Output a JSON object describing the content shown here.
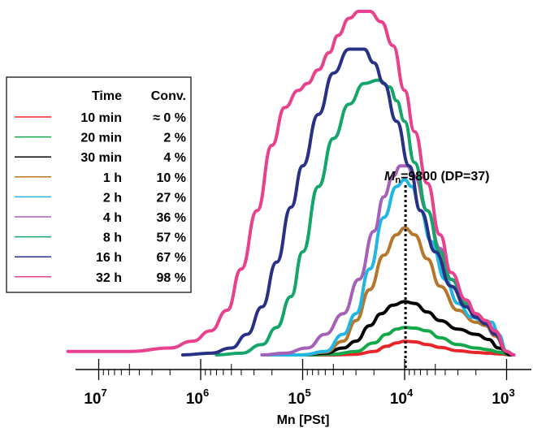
{
  "chart_data": {
    "type": "line",
    "xlabel": "Mn [PSt]",
    "x_scale": "log",
    "x_reversed": true,
    "xlim": [
      20000000,
      700
    ],
    "ylim": [
      0,
      1
    ],
    "grid": false,
    "legend_position": "top-left",
    "legend_headers": {
      "time": "Time",
      "conv": "Conv."
    },
    "tick_labels": [
      {
        "value": 10000000,
        "base": "10",
        "exp": "7"
      },
      {
        "value": 1000000,
        "base": "10",
        "exp": "6"
      },
      {
        "value": 100000,
        "base": "10",
        "exp": "5"
      },
      {
        "value": 10000,
        "base": "10",
        "exp": "4"
      },
      {
        "value": 1000,
        "base": "10",
        "exp": "3"
      }
    ],
    "annotation": {
      "x": 9800,
      "italic_part": "M",
      "subscript": "n",
      "rest": "=9800 (DP=37)"
    },
    "series": [
      {
        "name": "10 min",
        "conv": "≈ 0 %",
        "color": "#e8252a",
        "x": [
          250000,
          100000,
          50000,
          30000,
          20000,
          15000,
          12000,
          10000,
          8000,
          6000,
          4500,
          3000,
          2000,
          1500,
          1200,
          900
        ],
        "y": [
          0.0,
          0.0,
          0.0,
          0.002,
          0.01,
          0.025,
          0.035,
          0.04,
          0.038,
          0.03,
          0.022,
          0.012,
          0.007,
          0.005,
          0.003,
          0.0
        ]
      },
      {
        "name": "20 min",
        "conv": "2 %",
        "color": "#13a849",
        "x": [
          250000,
          100000,
          50000,
          30000,
          20000,
          15000,
          12000,
          10000,
          8000,
          6000,
          4500,
          3000,
          2000,
          1500,
          1200,
          900
        ],
        "y": [
          0.0,
          0.0,
          0.002,
          0.01,
          0.035,
          0.06,
          0.075,
          0.08,
          0.078,
          0.07,
          0.05,
          0.03,
          0.02,
          0.015,
          0.008,
          0.0
        ]
      },
      {
        "name": "30 min",
        "conv": "4 %",
        "color": "#000000",
        "x": [
          250000,
          100000,
          60000,
          40000,
          30000,
          22000,
          17000,
          13000,
          10000,
          8000,
          6000,
          4500,
          3000,
          2000,
          1500,
          1200,
          900
        ],
        "y": [
          0.0,
          0.0,
          0.005,
          0.02,
          0.04,
          0.085,
          0.12,
          0.145,
          0.155,
          0.15,
          0.125,
          0.1,
          0.075,
          0.06,
          0.045,
          0.02,
          0.0
        ]
      },
      {
        "name": "1 h",
        "conv": "10 %",
        "color": "#b5772c",
        "x": [
          250000,
          100000,
          60000,
          40000,
          30000,
          22000,
          16000,
          12000,
          10000,
          8000,
          6000,
          4500,
          3000,
          2000,
          1600,
          1300,
          1000,
          850
        ],
        "y": [
          0.0,
          0.0,
          0.008,
          0.04,
          0.1,
          0.19,
          0.29,
          0.35,
          0.37,
          0.35,
          0.28,
          0.2,
          0.13,
          0.095,
          0.085,
          0.055,
          0.01,
          0.0
        ]
      },
      {
        "name": "2 h",
        "conv": "27 %",
        "color": "#22b6e3",
        "x": [
          250000,
          100000,
          60000,
          40000,
          30000,
          22000,
          16000,
          12000,
          10000,
          8500,
          7000,
          5500,
          4000,
          3000,
          2200,
          1700,
          1400,
          1200,
          1000,
          850
        ],
        "y": [
          0.0,
          0.0,
          0.01,
          0.06,
          0.12,
          0.25,
          0.4,
          0.49,
          0.51,
          0.49,
          0.42,
          0.33,
          0.22,
          0.15,
          0.11,
          0.1,
          0.095,
          0.06,
          0.01,
          0.0
        ]
      },
      {
        "name": "4 h",
        "conv": "36 %",
        "color": "#a560b7",
        "x": [
          250000,
          150000,
          90000,
          60000,
          40000,
          28000,
          20000,
          16000,
          13000,
          11000,
          9500,
          8000,
          6000,
          4500,
          3500,
          2500,
          2000,
          1600,
          1300,
          1000,
          850
        ],
        "y": [
          0.0,
          0.005,
          0.02,
          0.06,
          0.12,
          0.22,
          0.36,
          0.46,
          0.52,
          0.55,
          0.55,
          0.52,
          0.42,
          0.31,
          0.22,
          0.15,
          0.12,
          0.1,
          0.07,
          0.01,
          0.0
        ]
      },
      {
        "name": "8 h",
        "conv": "57 %",
        "color": "#13a56a",
        "x": [
          700000,
          400000,
          250000,
          180000,
          130000,
          100000,
          70000,
          50000,
          35000,
          25000,
          18000,
          14000,
          12000,
          10000,
          8000,
          6000,
          4500,
          3500,
          2500,
          2000,
          1600,
          1300,
          1000,
          850
        ],
        "y": [
          0.0,
          0.005,
          0.03,
          0.08,
          0.17,
          0.3,
          0.49,
          0.63,
          0.73,
          0.79,
          0.8,
          0.78,
          0.74,
          0.68,
          0.56,
          0.42,
          0.3,
          0.22,
          0.15,
          0.12,
          0.1,
          0.07,
          0.01,
          0.0
        ]
      },
      {
        "name": "16 h",
        "conv": "67 %",
        "color": "#283184",
        "x": [
          1500000,
          800000,
          500000,
          350000,
          250000,
          180000,
          130000,
          100000,
          70000,
          50000,
          35000,
          25000,
          20000,
          16000,
          12000,
          9000,
          7000,
          5000,
          3500,
          2500,
          2000,
          1600,
          1300,
          1000,
          850
        ],
        "y": [
          0.0,
          0.005,
          0.02,
          0.06,
          0.14,
          0.27,
          0.43,
          0.55,
          0.7,
          0.82,
          0.89,
          0.89,
          0.85,
          0.79,
          0.68,
          0.55,
          0.42,
          0.3,
          0.2,
          0.14,
          0.11,
          0.09,
          0.06,
          0.01,
          0.0
        ]
      },
      {
        "name": "32 h",
        "conv": "98 %",
        "color": "#e8418e",
        "x": [
          20000000,
          5000000,
          2000000,
          1200000,
          800000,
          550000,
          400000,
          280000,
          200000,
          150000,
          110000,
          90000,
          70000,
          55000,
          45000,
          35000,
          28000,
          22000,
          17000,
          13000,
          10000,
          8000,
          6000,
          4500,
          3500,
          2500,
          2000,
          1600,
          1300,
          1000,
          850
        ],
        "y": [
          0.01,
          0.01,
          0.02,
          0.04,
          0.07,
          0.13,
          0.25,
          0.42,
          0.61,
          0.72,
          0.77,
          0.79,
          0.83,
          0.88,
          0.93,
          0.98,
          1.0,
          1.0,
          0.97,
          0.9,
          0.77,
          0.65,
          0.5,
          0.35,
          0.24,
          0.16,
          0.12,
          0.1,
          0.07,
          0.01,
          0.0
        ]
      }
    ]
  }
}
